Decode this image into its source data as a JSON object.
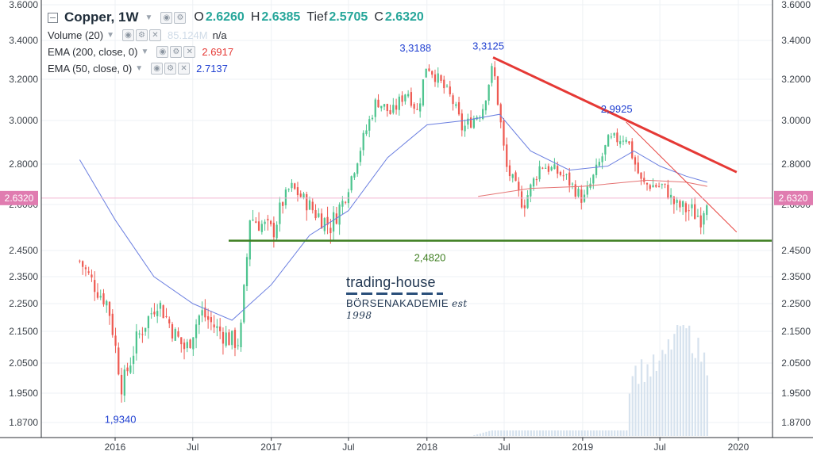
{
  "header": {
    "symbol": "Copper, 1W",
    "ohlc": [
      {
        "label": "O",
        "value": "2.6260"
      },
      {
        "label": "H",
        "value": "2.6385"
      },
      {
        "label": "Tief",
        "value": "2.5705"
      },
      {
        "label": "C",
        "value": "2.6320"
      }
    ]
  },
  "indicators": [
    {
      "name": "Volume (20)",
      "value": "85.124M",
      "value2": "n/a",
      "color": "#cfdbe7"
    },
    {
      "name": "EMA (200, close, 0)",
      "value": "2.6917",
      "color": "#e53935"
    },
    {
      "name": "EMA (50, close, 0)",
      "value": "2.7137",
      "color": "#1f3fd1"
    }
  ],
  "watermark": {
    "line1": "trading-house",
    "line2": "BÖRSENAKADEMIE",
    "line3": "est 1998"
  },
  "colors": {
    "up": "#4ec48f",
    "down": "#ee5a52",
    "trend": "#e53935",
    "support": "#3f7f22",
    "ema50": "#6b7fe0",
    "ema200": "#e57373",
    "price_tag": "#e07cb0",
    "volume": "#d6e2ee"
  },
  "chart_data": {
    "type": "candlestick",
    "x_tick_labels": [
      "2016",
      "Jul",
      "2017",
      "Jul",
      "2018",
      "Jul",
      "2019",
      "Jul",
      "2020"
    ],
    "x_ticks": [
      "2016-01",
      "2016-07",
      "2017-01",
      "2017-07",
      "2018-01",
      "2018-07",
      "2019-01",
      "2019-07",
      "2020-01"
    ],
    "y_tick_labels": [
      "3.6000",
      "3.4000",
      "3.2000",
      "3.0000",
      "2.8000",
      "2.6000",
      "2.4500",
      "2.3500",
      "2.2500",
      "2.1500",
      "2.0500",
      "1.9500",
      "1.8700"
    ],
    "y_ticks": [
      3.6,
      3.4,
      3.2,
      3.0,
      2.8,
      2.6,
      2.45,
      2.35,
      2.25,
      2.15,
      2.05,
      1.95,
      1.87
    ],
    "last_price": "2.6320",
    "annotations": [
      {
        "text": "3,3188",
        "date": "2017-12-31",
        "price": 3.3188
      },
      {
        "text": "3,3125",
        "date": "2018-06-05",
        "price": 3.3125
      },
      {
        "text": "2,9925",
        "date": "2019-04-13",
        "price": 2.9925
      },
      {
        "text": "1,9340",
        "date": "2016-01-17",
        "price": 1.934
      },
      {
        "text": "2,4820",
        "date": "2018-01-08",
        "price": 2.482
      }
    ],
    "support_level": 2.482,
    "trendlines": [
      {
        "from": {
          "date": "2018-06-05",
          "price": 3.3125
        },
        "to": {
          "date": "2019-12-28",
          "price": 2.76
        }
      },
      {
        "from": {
          "date": "2019-04-13",
          "price": 2.9925
        },
        "to": {
          "date": "2019-12-28",
          "price": 2.51
        }
      }
    ],
    "ema200": [
      [
        "2018-05-01",
        2.64
      ],
      [
        "2018-09-01",
        2.68
      ],
      [
        "2019-01-01",
        2.69
      ],
      [
        "2019-06-01",
        2.72
      ],
      [
        "2019-09-01",
        2.71
      ],
      [
        "2019-10-20",
        2.69
      ]
    ],
    "ema50": [
      [
        "2015-10-10",
        2.82
      ],
      [
        "2016-01-01",
        2.55
      ],
      [
        "2016-04-01",
        2.35
      ],
      [
        "2016-07-01",
        2.25
      ],
      [
        "2016-10-01",
        2.19
      ],
      [
        "2017-01-01",
        2.32
      ],
      [
        "2017-04-01",
        2.5
      ],
      [
        "2017-07-01",
        2.58
      ],
      [
        "2017-10-01",
        2.83
      ],
      [
        "2018-01-01",
        2.98
      ],
      [
        "2018-04-01",
        3.0
      ],
      [
        "2018-06-20",
        3.03
      ],
      [
        "2018-09-01",
        2.86
      ],
      [
        "2018-12-01",
        2.77
      ],
      [
        "2019-03-01",
        2.79
      ],
      [
        "2019-05-01",
        2.86
      ],
      [
        "2019-07-01",
        2.79
      ],
      [
        "2019-09-01",
        2.74
      ],
      [
        "2019-10-20",
        2.71
      ]
    ],
    "anchors": [
      [
        "2015-10-10",
        2.41
      ],
      [
        "2015-11-20",
        2.3
      ],
      [
        "2015-12-15",
        2.25
      ],
      [
        "2016-01-17",
        1.97
      ],
      [
        "2016-02-20",
        2.12
      ],
      [
        "2016-04-10",
        2.26
      ],
      [
        "2016-05-20",
        2.14
      ],
      [
        "2016-06-15",
        2.09
      ],
      [
        "2016-07-20",
        2.22
      ],
      [
        "2016-08-25",
        2.16
      ],
      [
        "2016-10-01",
        2.12
      ],
      [
        "2016-10-20",
        2.12
      ],
      [
        "2016-11-12",
        2.56
      ],
      [
        "2017-01-05",
        2.51
      ],
      [
        "2017-02-15",
        2.69
      ],
      [
        "2017-04-10",
        2.58
      ],
      [
        "2017-05-20",
        2.53
      ],
      [
        "2017-06-20",
        2.62
      ],
      [
        "2017-07-25",
        2.85
      ],
      [
        "2017-09-05",
        3.1
      ],
      [
        "2017-10-10",
        3.03
      ],
      [
        "2017-11-15",
        3.15
      ],
      [
        "2017-12-10",
        3.04
      ],
      [
        "2017-12-31",
        3.28
      ],
      [
        "2018-03-01",
        3.1
      ],
      [
        "2018-03-25",
        2.96
      ],
      [
        "2018-05-10",
        3.05
      ],
      [
        "2018-06-05",
        3.27
      ],
      [
        "2018-07-05",
        2.79
      ],
      [
        "2018-08-15",
        2.6
      ],
      [
        "2018-09-25",
        2.8
      ],
      [
        "2018-11-20",
        2.74
      ],
      [
        "2019-01-03",
        2.62
      ],
      [
        "2019-03-01",
        2.9
      ],
      [
        "2019-04-13",
        2.93
      ],
      [
        "2019-05-20",
        2.7
      ],
      [
        "2019-07-10",
        2.69
      ],
      [
        "2019-08-05",
        2.6
      ],
      [
        "2019-09-10",
        2.58
      ],
      [
        "2019-10-05",
        2.56
      ],
      [
        "2019-10-20",
        2.632
      ]
    ],
    "volume_profile": [
      [
        "2018-04-15",
        0.0
      ],
      [
        "2018-06-01",
        0.05
      ],
      [
        "2019-04-15",
        0.05
      ],
      [
        "2019-04-22",
        0.55
      ],
      [
        "2019-07-01",
        0.6
      ],
      [
        "2019-08-20",
        1.0
      ],
      [
        "2019-10-20",
        0.62
      ]
    ],
    "date_range": [
      "2015-10-10",
      "2019-10-20"
    ]
  }
}
